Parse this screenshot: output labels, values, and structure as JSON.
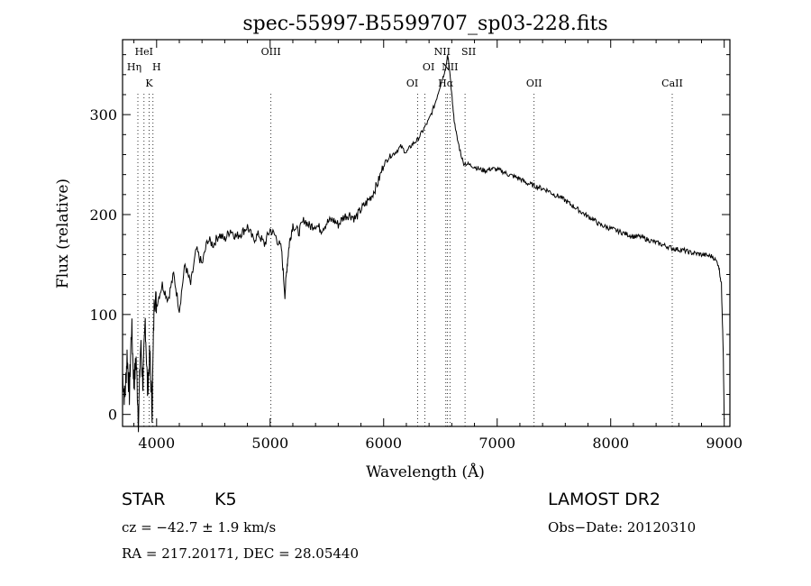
{
  "chart_data": {
    "type": "line",
    "title": "spec-55997-B5599707_sp03-228.fits",
    "xlabel": "Wavelength (Å)",
    "ylabel": "Flux (relative)",
    "xlim": [
      3700,
      9050
    ],
    "ylim": [
      -12,
      375
    ],
    "xticks": [
      4000,
      5000,
      6000,
      7000,
      8000,
      9000
    ],
    "yticks": [
      0,
      100,
      200,
      300
    ],
    "grid": false,
    "series": [
      {
        "x": [
          3700,
          3720,
          3740,
          3760,
          3780,
          3800,
          3820,
          3840,
          3860,
          3880,
          3900,
          3920,
          3940,
          3960,
          3980,
          4000,
          4050,
          4100,
          4150,
          4200,
          4250,
          4300,
          4350,
          4400,
          4450,
          4500,
          4550,
          4600,
          4650,
          4700,
          4750,
          4800,
          4850,
          4900,
          4950,
          5000,
          5050,
          5100,
          5130,
          5150,
          5170,
          5200,
          5250,
          5300,
          5350,
          5400,
          5450,
          5500,
          5550,
          5600,
          5650,
          5700,
          5750,
          5800,
          5850,
          5900,
          5950,
          6000,
          6050,
          6100,
          6150,
          6200,
          6250,
          6300,
          6350,
          6400,
          6450,
          6500,
          6530,
          6550,
          6563,
          6570,
          6580,
          6600,
          6620,
          6650,
          6700,
          6750,
          6800,
          6850,
          6900,
          6950,
          7000,
          7050,
          7100,
          7150,
          7200,
          7250,
          7300,
          7350,
          7400,
          7450,
          7500,
          7550,
          7600,
          7650,
          7700,
          7750,
          7800,
          7850,
          7900,
          7950,
          8000,
          8050,
          8100,
          8150,
          8200,
          8250,
          8300,
          8350,
          8400,
          8450,
          8500,
          8550,
          8600,
          8650,
          8700,
          8750,
          8800,
          8850,
          8900,
          8950,
          8975,
          8990,
          9000
        ],
        "y": [
          40,
          15,
          60,
          20,
          90,
          30,
          55,
          -5,
          70,
          30,
          95,
          25,
          60,
          5,
          120,
          110,
          130,
          115,
          140,
          105,
          150,
          130,
          165,
          150,
          175,
          170,
          180,
          175,
          185,
          178,
          182,
          188,
          175,
          180,
          170,
          185,
          178,
          165,
          120,
          150,
          172,
          190,
          182,
          195,
          188,
          190,
          185,
          192,
          195,
          190,
          198,
          200,
          196,
          205,
          212,
          220,
          232,
          250,
          258,
          262,
          268,
          262,
          270,
          275,
          285,
          295,
          310,
          330,
          340,
          348,
          360,
          355,
          345,
          320,
          295,
          275,
          252,
          250,
          248,
          245,
          244,
          246,
          245,
          243,
          240,
          238,
          236,
          232,
          230,
          228,
          226,
          224,
          220,
          218,
          214,
          210,
          206,
          202,
          198,
          195,
          190,
          188,
          186,
          184,
          182,
          180,
          178,
          178,
          176,
          174,
          172,
          170,
          168,
          166,
          165,
          164,
          162,
          161,
          160,
          159,
          158,
          150,
          130,
          70,
          -5
        ]
      }
    ],
    "line_markers": [
      {
        "label": "HeI",
        "wavelength": 3889
      },
      {
        "label": "Hη",
        "wavelength": 3835
      },
      {
        "label": "H",
        "wavelength": 3968
      },
      {
        "label": "K",
        "wavelength": 3934
      },
      {
        "label": "OIII",
        "wavelength": 5007
      },
      {
        "label": "OI",
        "wavelength": 6300
      },
      {
        "label": "OI",
        "wavelength": 6364
      },
      {
        "label": "NII",
        "wavelength": 6548
      },
      {
        "label": "SII",
        "wavelength": 6717
      },
      {
        "label": "NII",
        "wavelength": 6584
      },
      {
        "label": "Hα",
        "wavelength": 6563
      },
      {
        "label": "OII",
        "wavelength": 7325
      },
      {
        "label": "CaII",
        "wavelength": 8542
      }
    ]
  },
  "info": {
    "object_class": "STAR",
    "subclass": "K5",
    "survey": "LAMOST DR2",
    "cz": "cz = −42.7 ± 1.9 km/s",
    "obs_date": "Obs−Date: 20120310",
    "coords": "RA = 217.20171, DEC =  28.05440"
  }
}
